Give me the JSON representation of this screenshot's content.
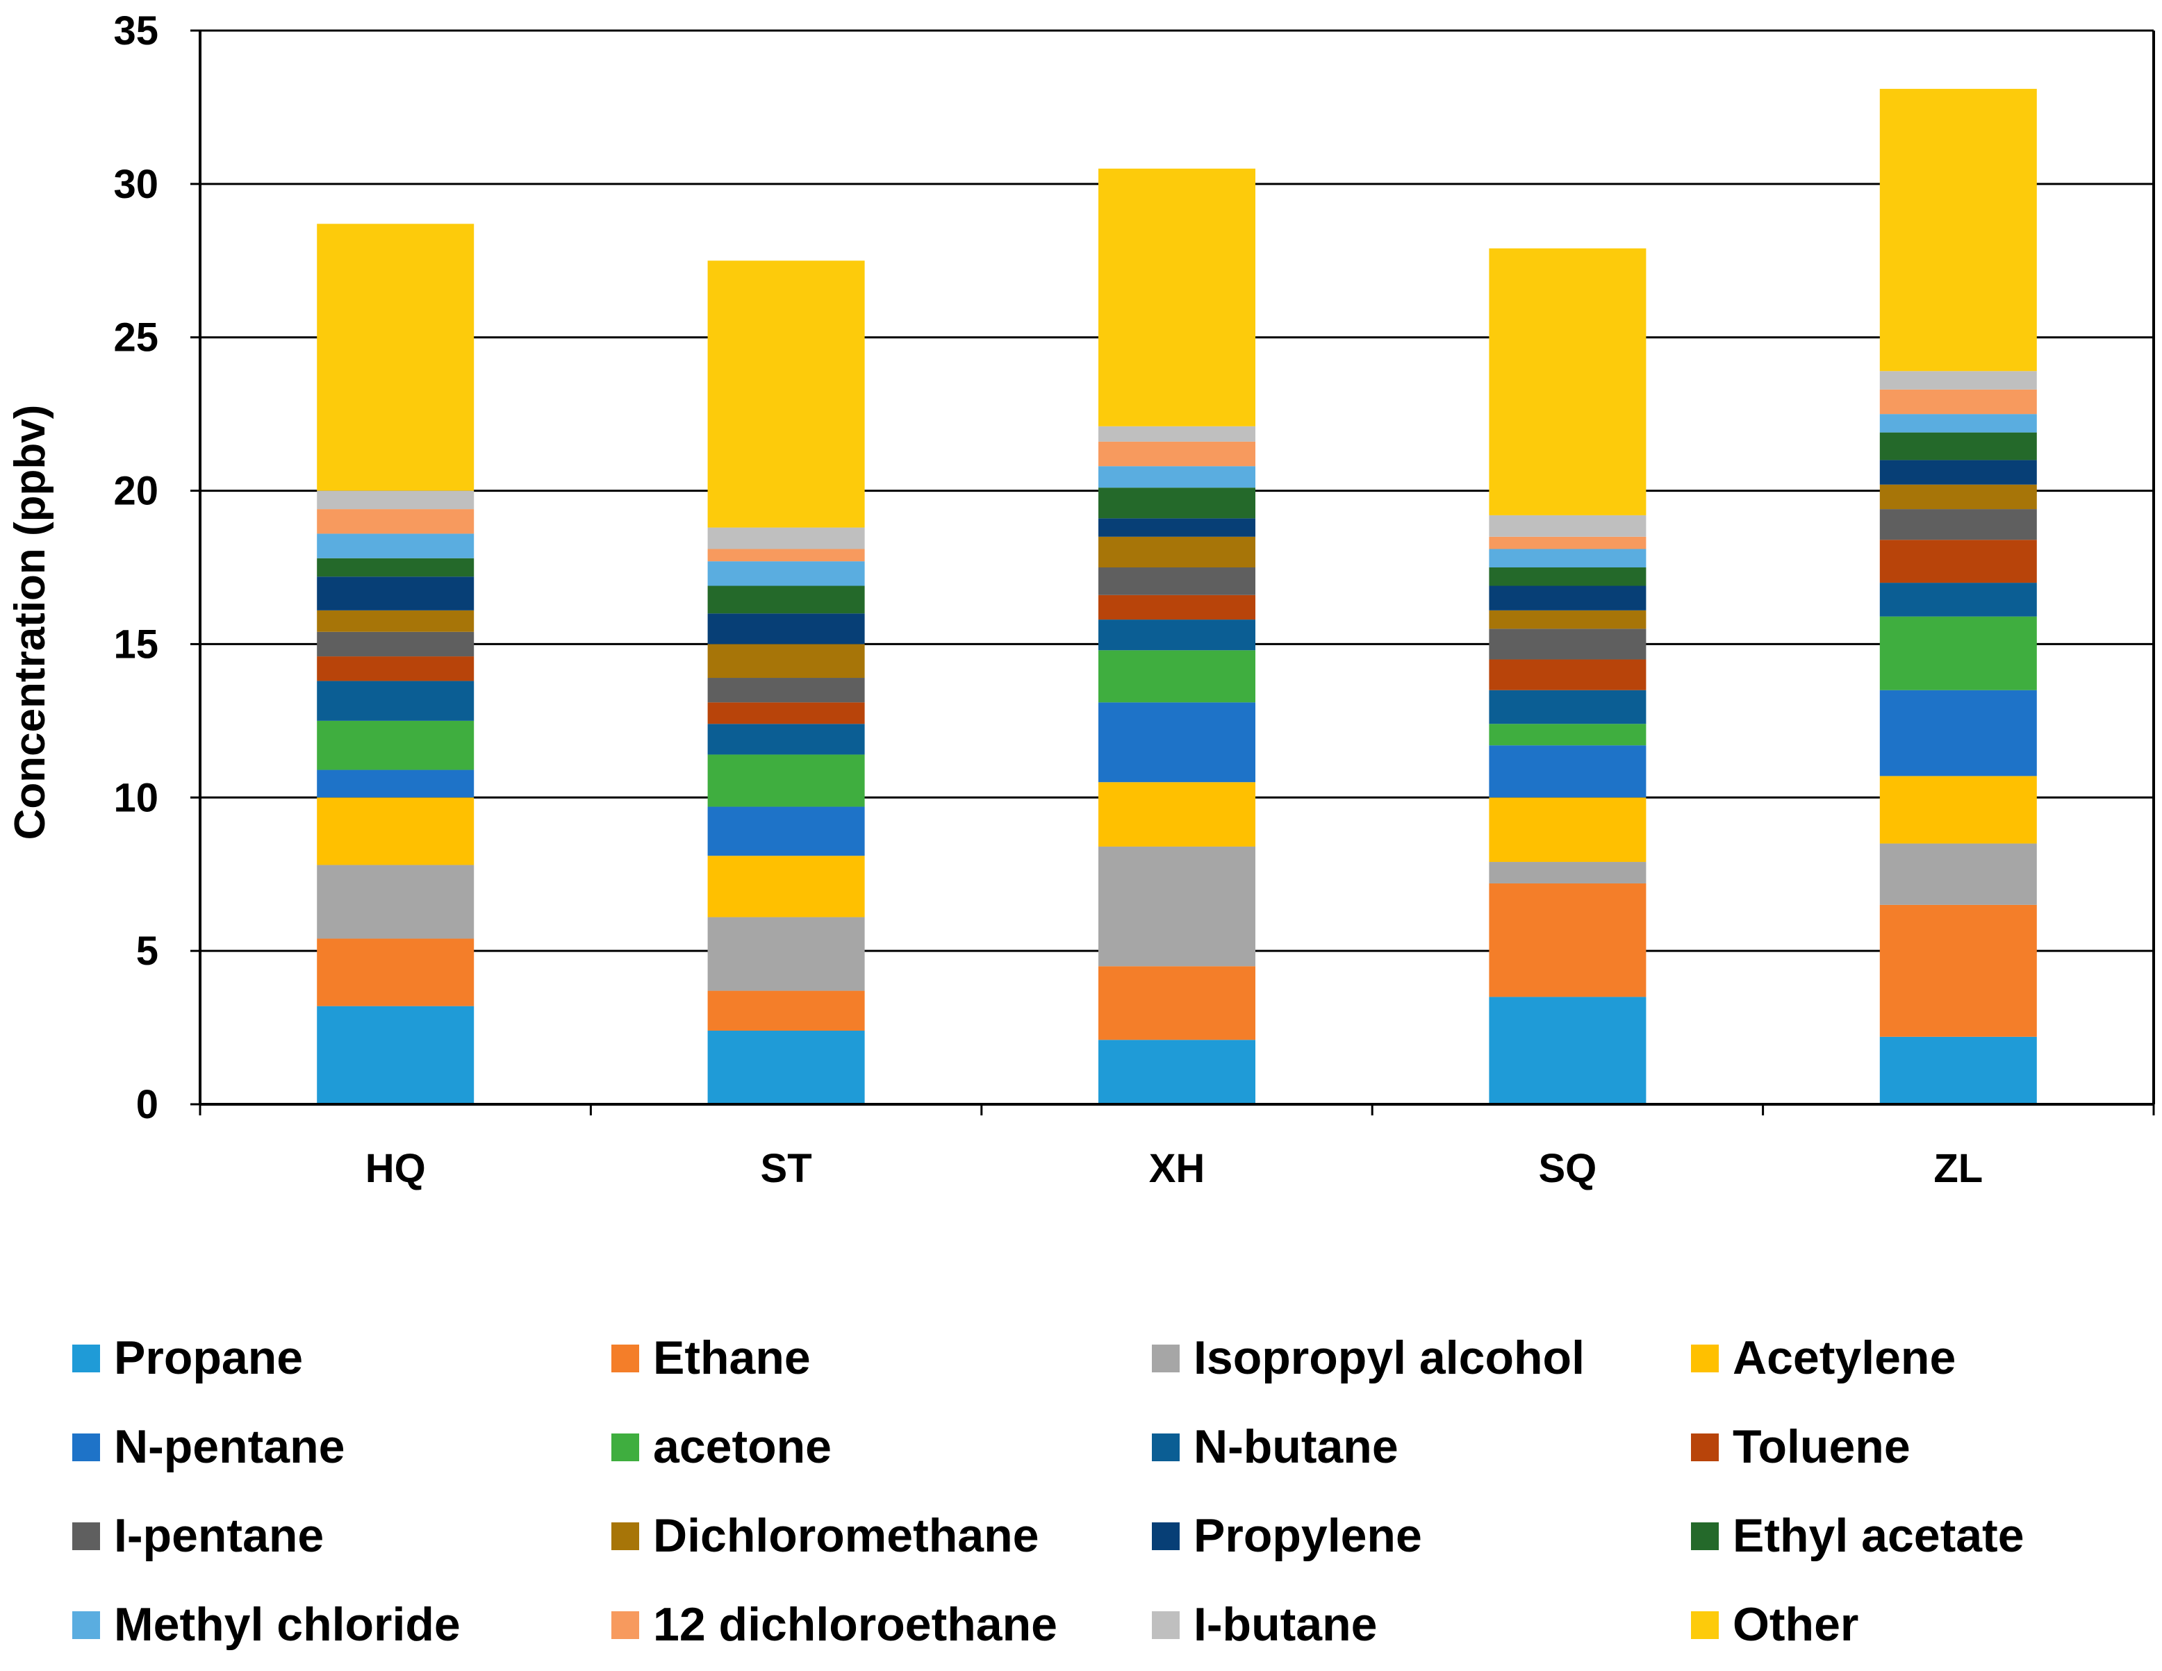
{
  "chart_data": {
    "type": "bar",
    "stacked": true,
    "title": "",
    "xlabel": "",
    "ylabel": "Concentration (ppbv)",
    "ylim": [
      0,
      35
    ],
    "yticks": [
      0,
      5,
      10,
      15,
      20,
      25,
      30,
      35
    ],
    "grid": true,
    "legend_position": "bottom",
    "categories": [
      "HQ",
      "ST",
      "XH",
      "SQ",
      "ZL"
    ],
    "series": [
      {
        "name": "Propane",
        "color": "#1f9bd7",
        "values": [
          3.2,
          2.4,
          2.1,
          3.5,
          2.2
        ]
      },
      {
        "name": "Ethane",
        "color": "#f47e29",
        "values": [
          2.2,
          1.3,
          2.4,
          3.7,
          4.3
        ]
      },
      {
        "name": "Isopropyl alcohol",
        "color": "#a6a6a6",
        "values": [
          2.4,
          2.4,
          3.9,
          0.7,
          2.0
        ]
      },
      {
        "name": "Acetylene",
        "color": "#ffc000",
        "values": [
          2.2,
          2.0,
          2.1,
          2.1,
          2.2
        ]
      },
      {
        "name": "N-pentane",
        "color": "#1e73c8",
        "values": [
          0.9,
          1.6,
          2.6,
          1.7,
          2.8
        ]
      },
      {
        "name": "acetone",
        "color": "#3fae3f",
        "values": [
          1.6,
          1.7,
          1.7,
          0.7,
          2.4
        ]
      },
      {
        "name": "N-butane",
        "color": "#0b5e94",
        "values": [
          1.3,
          1.0,
          1.0,
          1.1,
          1.1
        ]
      },
      {
        "name": "Toluene",
        "color": "#b8440a",
        "values": [
          0.8,
          0.7,
          0.8,
          1.0,
          1.4
        ]
      },
      {
        "name": "I-pentane",
        "color": "#5f5f5f",
        "values": [
          0.8,
          0.8,
          0.9,
          1.0,
          1.0
        ]
      },
      {
        "name": "Dichloromethane",
        "color": "#a77508",
        "values": [
          0.7,
          1.1,
          1.0,
          0.6,
          0.8
        ]
      },
      {
        "name": "Propylene",
        "color": "#073f76",
        "values": [
          1.1,
          1.0,
          0.6,
          0.8,
          0.8
        ]
      },
      {
        "name": "Ethyl acetate",
        "color": "#24692a",
        "values": [
          0.6,
          0.9,
          1.0,
          0.6,
          0.9
        ]
      },
      {
        "name": "Methyl chloride",
        "color": "#5aade0",
        "values": [
          0.8,
          0.8,
          0.7,
          0.6,
          0.6
        ]
      },
      {
        "name": "12 dichloroethane",
        "color": "#f79a5e",
        "values": [
          0.8,
          0.4,
          0.8,
          0.4,
          0.8
        ]
      },
      {
        "name": "I-butane",
        "color": "#bfbfbf",
        "values": [
          0.6,
          0.7,
          0.5,
          0.7,
          0.6
        ]
      },
      {
        "name": "Other",
        "color": "#fdcb0b",
        "values": [
          8.7,
          8.7,
          8.4,
          8.7,
          9.2
        ]
      }
    ]
  }
}
